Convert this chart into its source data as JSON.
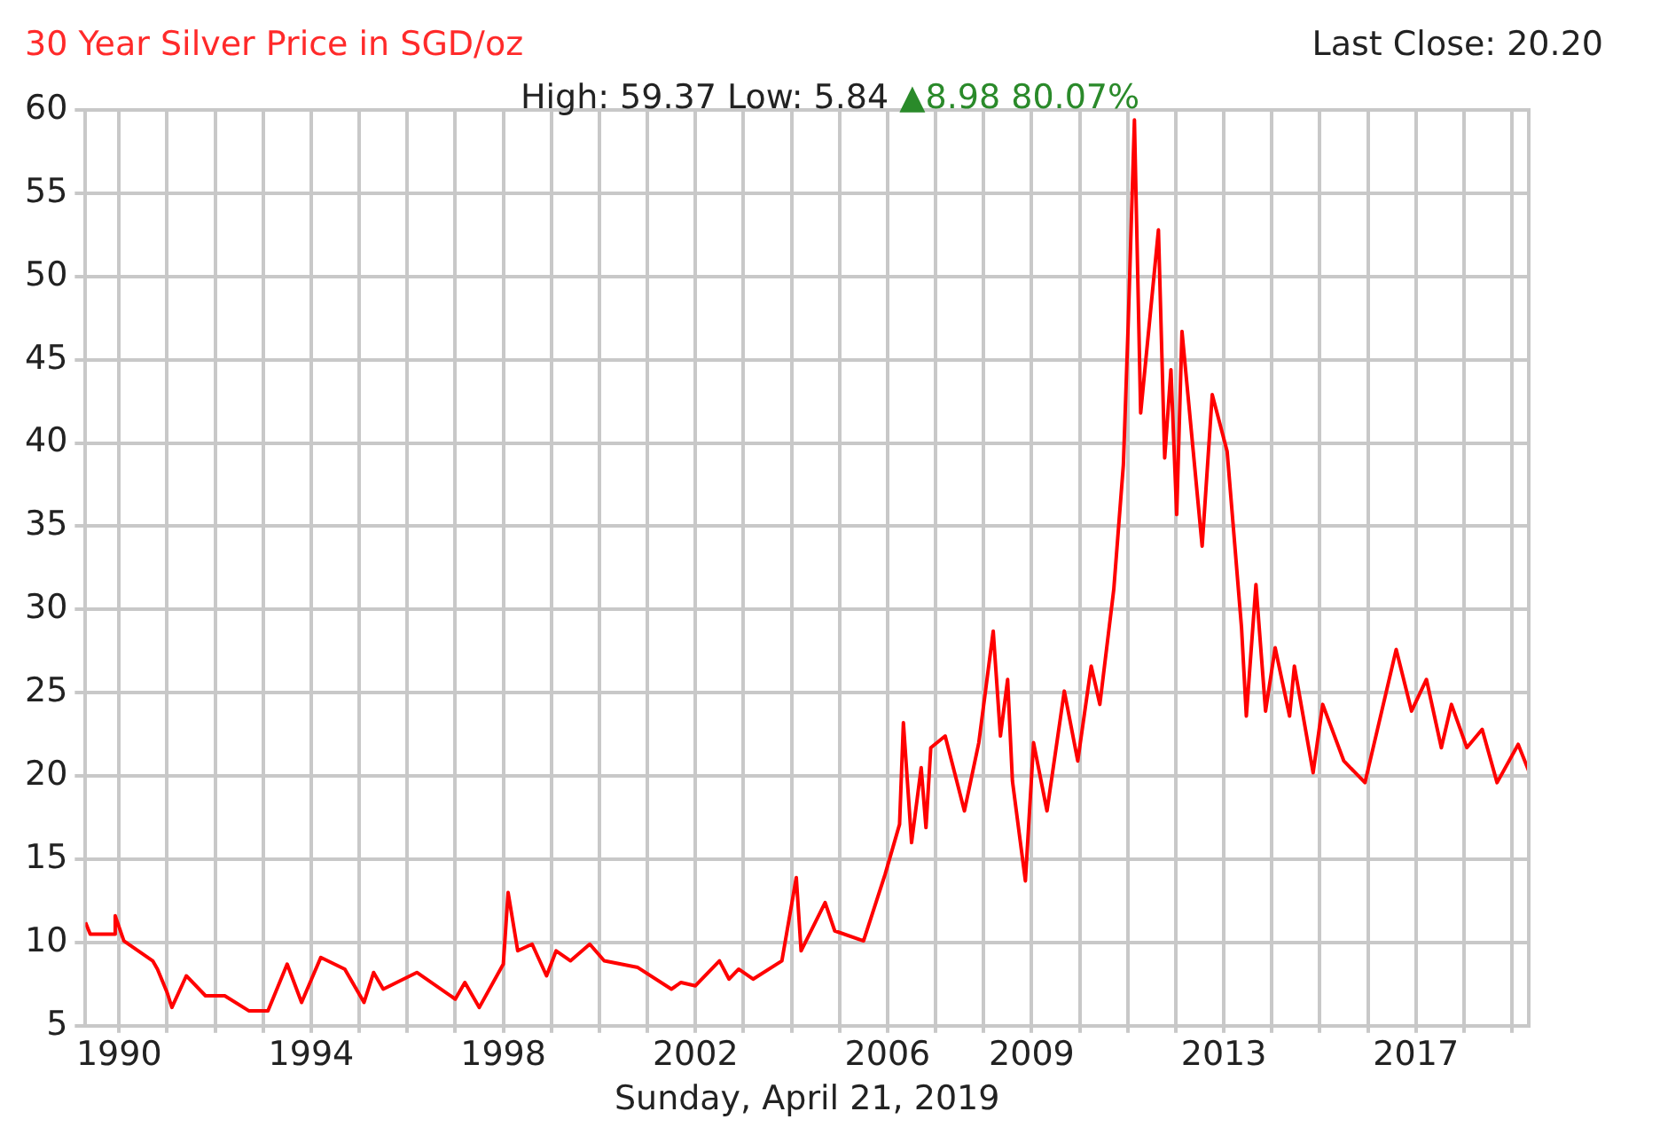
{
  "chart_data": {
    "type": "line",
    "title": "30 Year Silver Price in SGD/oz",
    "subtitle": "High: 59.37 Low: 5.84",
    "xlabel": "Sunday, April 21, 2019",
    "annotations": [
      "Last Close: 20.20",
      "▲8.98 80.07%"
    ],
    "x": [
      1989.3,
      1989.4,
      1989.9,
      1989.92,
      1990.1,
      1990.7,
      1990.8,
      1991.0,
      1991.1,
      1991.4,
      1991.8,
      1992.2,
      1992.7,
      1993.1,
      1993.5,
      1993.8,
      1994.2,
      1994.7,
      1995.1,
      1995.3,
      1995.5,
      1996.2,
      1997.0,
      1997.2,
      1997.5,
      1998.0,
      1998.1,
      1998.3,
      1998.6,
      1998.9,
      1999.1,
      1999.4,
      1999.8,
      2000.1,
      2000.8,
      2001.5,
      2001.7,
      2002.0,
      2002.5,
      2002.7,
      2002.9,
      2003.2,
      2003.8,
      2004.1,
      2004.2,
      2004.7,
      2004.9,
      2005.5,
      2005.95,
      2006.25,
      2006.33,
      2006.5,
      2006.7,
      2006.8,
      2006.9,
      2007.2,
      2007.6,
      2007.9,
      2008.2,
      2008.35,
      2008.5,
      2008.6,
      2008.87,
      2009.04,
      2009.32,
      2009.68,
      2009.96,
      2010.24,
      2010.42,
      2010.71,
      2010.91,
      2011.01,
      2011.14,
      2011.27,
      2011.64,
      2011.77,
      2011.9,
      2012.02,
      2012.13,
      2012.55,
      2012.76,
      2013.07,
      2013.37,
      2013.47,
      2013.67,
      2013.87,
      2014.07,
      2014.37,
      2014.47,
      2014.86,
      2015.06,
      2015.5,
      2015.94,
      2016.59,
      2016.91,
      2017.22,
      2017.53,
      2017.74,
      2018.06,
      2018.38,
      2018.69,
      2019.13,
      2019.35
    ],
    "series": [
      {
        "color": "#ff0000",
        "values": [
          11.2,
          10.5,
          10.5,
          11.6,
          10.1,
          8.9,
          8.4,
          7.0,
          6.1,
          8.0,
          6.8,
          6.8,
          5.9,
          5.9,
          8.7,
          6.4,
          9.1,
          8.4,
          6.4,
          8.2,
          7.2,
          8.2,
          6.6,
          7.6,
          6.1,
          8.7,
          13.0,
          9.5,
          9.9,
          8.0,
          9.5,
          8.9,
          9.9,
          8.9,
          8.5,
          7.2,
          7.6,
          7.4,
          8.9,
          7.8,
          8.4,
          7.8,
          8.9,
          13.9,
          9.5,
          12.4,
          10.7,
          10.1,
          14.1,
          17.1,
          23.2,
          16.0,
          20.5,
          16.9,
          21.7,
          22.4,
          17.9,
          22.0,
          28.7,
          22.4,
          25.8,
          19.7,
          13.7,
          22.0,
          17.9,
          25.1,
          20.9,
          26.6,
          24.3,
          31.2,
          38.7,
          47.1,
          59.4,
          41.8,
          52.8,
          39.1,
          44.4,
          35.7,
          46.7,
          33.8,
          42.9,
          39.5,
          28.9,
          23.6,
          31.5,
          23.9,
          27.7,
          23.6,
          26.6,
          20.2,
          24.3,
          20.9,
          19.6,
          27.6,
          23.9,
          25.8,
          21.7,
          24.3,
          21.7,
          22.8,
          19.6,
          21.9,
          20.3
        ]
      }
    ],
    "xlim": [
      1989.3,
      2019.35
    ],
    "xticks": [
      1990,
      {
        "value": 1991,
        "label": null
      },
      {
        "value": 1992,
        "label": null
      },
      {
        "value": 1993,
        "label": null
      },
      1994,
      {
        "value": 1995,
        "label": null
      },
      {
        "value": 1996,
        "label": null
      },
      {
        "value": 1997,
        "label": null
      },
      1998,
      {
        "value": 1999,
        "label": null
      },
      {
        "value": 2000,
        "label": null
      },
      {
        "value": 2001,
        "label": null
      },
      2002,
      {
        "value": 2003,
        "label": null
      },
      {
        "value": 2004,
        "label": null
      },
      {
        "value": 2005,
        "label": null
      },
      2006,
      {
        "value": 2007,
        "label": null
      },
      {
        "value": 2008,
        "label": null
      },
      2009,
      {
        "value": 2010,
        "label": null
      },
      {
        "value": 2011,
        "label": null
      },
      {
        "value": 2012,
        "label": null
      },
      2013,
      {
        "value": 2014,
        "label": null
      },
      {
        "value": 2015,
        "label": null
      },
      {
        "value": 2016,
        "label": null
      },
      2017,
      {
        "value": 2018,
        "label": null
      },
      {
        "value": 2019,
        "label": null
      }
    ],
    "ylim": [
      5,
      60
    ],
    "yticks": [
      5,
      10,
      15,
      20,
      25,
      30,
      35,
      40,
      45,
      50,
      55,
      60
    ],
    "grid": true,
    "legend": false
  }
}
